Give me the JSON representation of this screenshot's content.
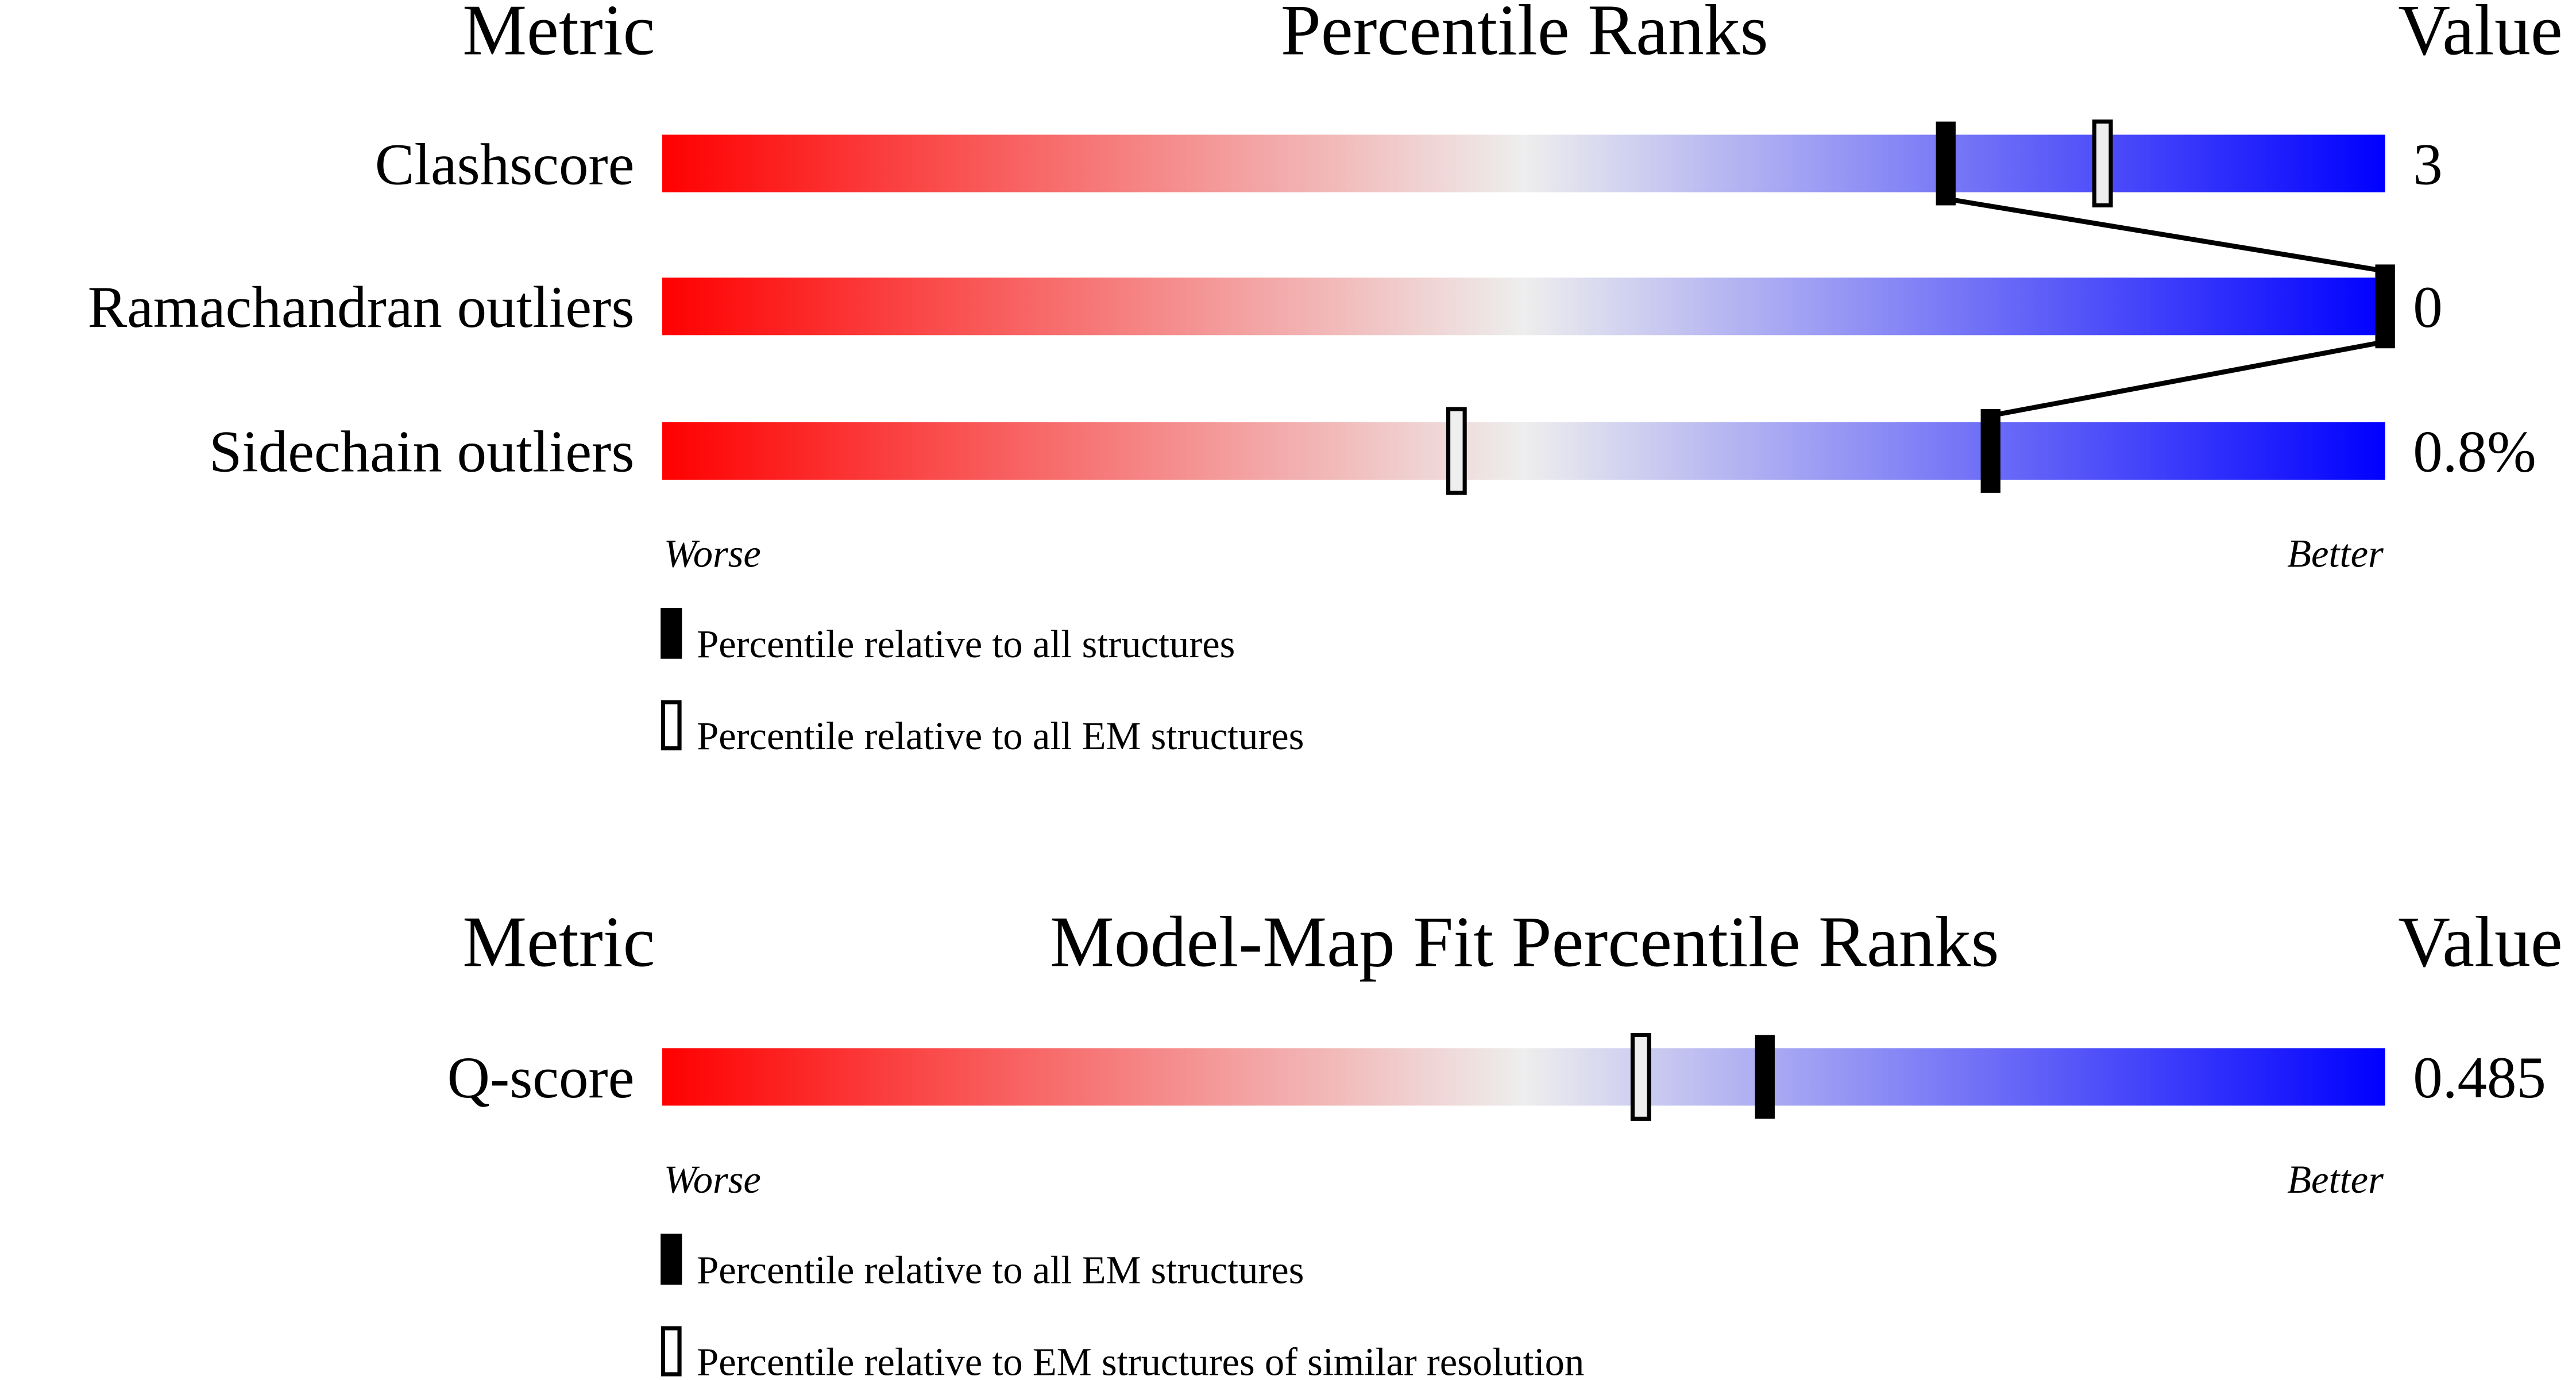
{
  "chart_data": [
    {
      "type": "bar",
      "title": "Percentile Ranks",
      "header_metric": "Metric",
      "header_value": "Value",
      "xlim": [
        0,
        100
      ],
      "worse_label": "Worse",
      "better_label": "Better",
      "gradient_colors": [
        "#ff0000",
        "#eeeeee",
        "#0000ff"
      ],
      "metrics": [
        {
          "name": "Clashscore",
          "value": "3",
          "percentile_all": 74.5,
          "percentile_secondary": 83.6
        },
        {
          "name": "Ramachandran outliers",
          "value": "0",
          "percentile_all": 100,
          "percentile_secondary": null
        },
        {
          "name": "Sidechain outliers",
          "value": "0.8%",
          "percentile_all": 77.1,
          "percentile_secondary": 46.1
        }
      ],
      "legend": [
        {
          "marker": "filled",
          "label": "Percentile relative to all structures"
        },
        {
          "marker": "open",
          "label": "Percentile relative to all EM structures"
        }
      ],
      "connect_filled_markers": true
    },
    {
      "type": "bar",
      "title": "Model-Map Fit Percentile Ranks",
      "header_metric": "Metric",
      "header_value": "Value",
      "xlim": [
        0,
        100
      ],
      "worse_label": "Worse",
      "better_label": "Better",
      "gradient_colors": [
        "#ff0000",
        "#eeeeee",
        "#0000ff"
      ],
      "metrics": [
        {
          "name": "Q-score",
          "value": "0.485",
          "percentile_all": 64.0,
          "percentile_secondary": 56.8
        }
      ],
      "legend": [
        {
          "marker": "filled",
          "label": "Percentile relative to all EM structures"
        },
        {
          "marker": "open",
          "label": "Percentile relative to EM structures of similar resolution"
        }
      ],
      "connect_filled_markers": false
    }
  ]
}
